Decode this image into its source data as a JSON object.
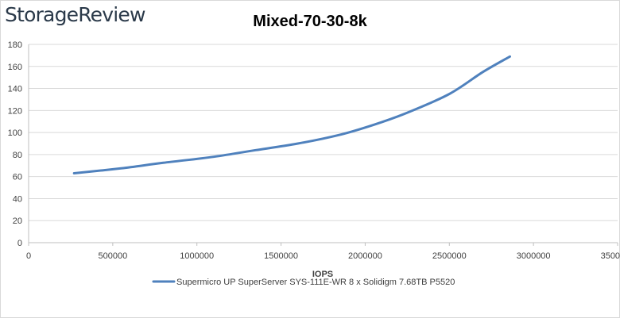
{
  "logo": {
    "text": "StorageReview"
  },
  "chart_data": {
    "type": "line",
    "title": "Mixed-70-30-8k",
    "xlabel": "IOPS",
    "ylabel": "",
    "xlim": [
      0,
      3500000
    ],
    "ylim": [
      0,
      180
    ],
    "xticks": [
      0,
      500000,
      1000000,
      1500000,
      2000000,
      2500000,
      3000000,
      3500000
    ],
    "yticks": [
      0,
      20,
      40,
      60,
      80,
      100,
      120,
      140,
      160,
      180
    ],
    "grid": "horizontal",
    "legend": "bottom",
    "series": [
      {
        "name": "Supermicro UP SuperServer SYS-111E-WR 8 x Solidigm 7.68TB P5520",
        "color": "#4f81bd",
        "x": [
          270000,
          550000,
          800000,
          1100000,
          1350000,
          1600000,
          1850000,
          2050000,
          2250000,
          2500000,
          2700000,
          2860000
        ],
        "y": [
          63,
          67.5,
          72.5,
          78,
          84,
          90,
          98,
          107,
          118,
          135,
          155,
          169
        ]
      }
    ]
  }
}
